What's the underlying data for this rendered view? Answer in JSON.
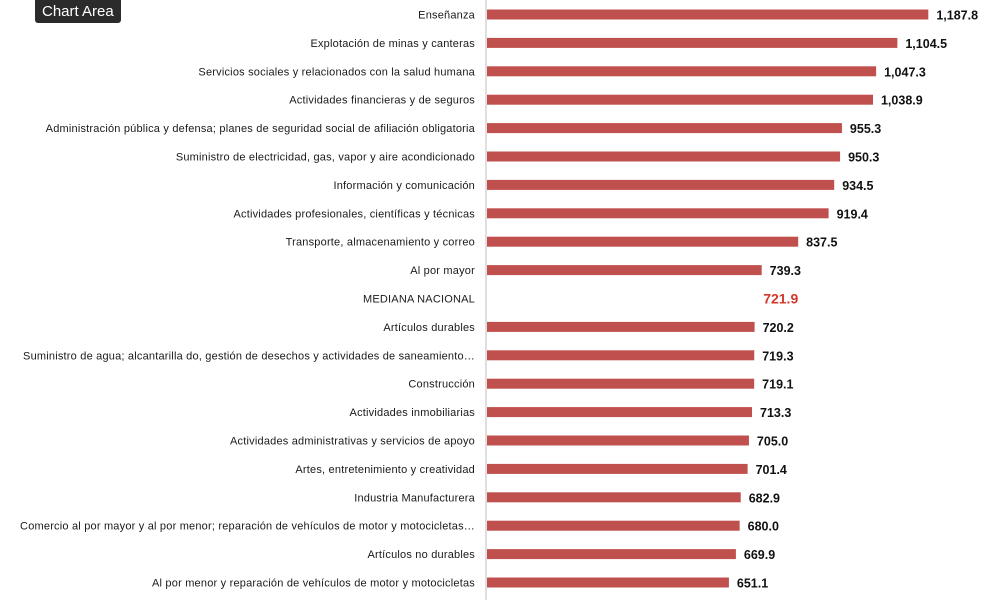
{
  "tooltip": {
    "label": "Chart Area"
  },
  "colors": {
    "bar": "#c0504d",
    "highlight_text": "#d03a2b",
    "axis": "#bfbfbf"
  },
  "chart_data": {
    "type": "bar",
    "orientation": "horizontal",
    "categories": [
      "Enseñanza",
      "Explotación de minas y canteras",
      "Servicios sociales y relacionados  con la salud humana",
      "Actividades financieras y  de seguros",
      "Administración pública y defensa;  planes de seguridad social  de afiliación obligatoria",
      "Suministro de electricidad, gas, vapor y aire acondicionado",
      "Información y comunicación",
      "Actividades profesionales,  científicas y técnicas",
      "Transporte, almacenamiento y correo",
      "Al por mayor",
      "MEDIANA NACIONAL",
      "Artículos durables",
      "Suministro de agua; alcantarilla do,  gestión  de  desechos  y  actividades de saneamiento…",
      "Construcción",
      "Actividades inmobiliarias",
      "Actividades administrativas y  servicios de apoyo",
      "Artes, entretenimiento y   creatividad",
      "Industria Manufacturera",
      "Comercio  al por  mayor  y  al por  menor; reparación de vehículos  de motor y motocicletas…",
      "Artículos no durables",
      "Al por menor y reparación de  vehículos de motor y  motocicletas"
    ],
    "values": [
      1187.8,
      1104.5,
      1047.3,
      1038.9,
      955.3,
      950.3,
      934.5,
      919.4,
      837.5,
      739.3,
      721.9,
      720.2,
      719.3,
      719.1,
      713.3,
      705.0,
      701.4,
      682.9,
      680.0,
      669.9,
      651.1
    ],
    "value_labels": [
      "1,187.8",
      "1,104.5",
      "1,047.3",
      "1,038.9",
      "955.3",
      "950.3",
      "934.5",
      "919.4",
      "837.5",
      "739.3",
      "721.9",
      "720.2",
      "719.3",
      "719.1",
      "713.3",
      "705.0",
      "701.4",
      "682.9",
      "680.0",
      "669.9",
      "651.1"
    ],
    "highlight": "MEDIANA NACIONAL",
    "title": "",
    "xlabel": "",
    "ylabel": "",
    "xlim": [
      0,
      1265
    ],
    "grid": false,
    "legend": "none"
  }
}
